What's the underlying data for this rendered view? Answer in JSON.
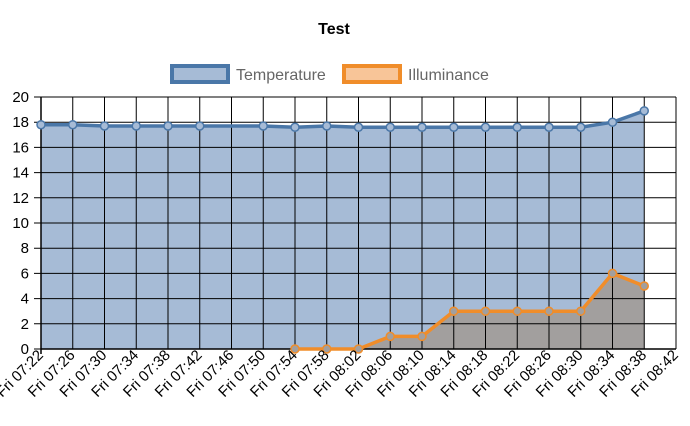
{
  "chart_data": {
    "type": "line",
    "title": "Test",
    "legend_position": "top",
    "grid": true,
    "ylim": [
      0,
      20
    ],
    "y_ticks": [
      "0",
      "2",
      "4",
      "6",
      "8",
      "10",
      "12",
      "14",
      "16",
      "18",
      "20"
    ],
    "categories": [
      "Fri 07:22",
      "Fri 07:26",
      "Fri 07:30",
      "Fri 07:34",
      "Fri 07:38",
      "Fri 07:42",
      "Fri 07:46",
      "Fri 07:50",
      "Fri 07:54",
      "Fri 07:58",
      "Fri 08:02",
      "Fri 08:06",
      "Fri 08:10",
      "Fri 08:14",
      "Fri 08:18",
      "Fri 08:22",
      "Fri 08:26",
      "Fri 08:30",
      "Fri 08:34",
      "Fri 08:38",
      "Fri 08:42"
    ],
    "series": [
      {
        "name": "Temperature",
        "color": "#4a77a8",
        "fill": "#a6bbd6",
        "points": [
          {
            "x": "Fri 07:22",
            "y": 17.8
          },
          {
            "x": "Fri 07:26",
            "y": 17.8
          },
          {
            "x": "Fri 07:30",
            "y": 17.7
          },
          {
            "x": "Fri 07:34",
            "y": 17.7
          },
          {
            "x": "Fri 07:38",
            "y": 17.7
          },
          {
            "x": "Fri 07:42",
            "y": 17.7
          },
          {
            "x": "Fri 07:50",
            "y": 17.7
          },
          {
            "x": "Fri 07:54",
            "y": 17.6
          },
          {
            "x": "Fri 07:58",
            "y": 17.7
          },
          {
            "x": "Fri 08:02",
            "y": 17.6
          },
          {
            "x": "Fri 08:06",
            "y": 17.6
          },
          {
            "x": "Fri 08:10",
            "y": 17.6
          },
          {
            "x": "Fri 08:14",
            "y": 17.6
          },
          {
            "x": "Fri 08:18",
            "y": 17.6
          },
          {
            "x": "Fri 08:22",
            "y": 17.6
          },
          {
            "x": "Fri 08:26",
            "y": 17.6
          },
          {
            "x": "Fri 08:30",
            "y": 17.6
          },
          {
            "x": "Fri 08:34",
            "y": 18.0
          },
          {
            "x": "Fri 08:38",
            "y": 18.9
          }
        ]
      },
      {
        "name": "Illuminance",
        "color": "#f08d2a",
        "fill": "#a29f9e",
        "points": [
          {
            "x": "Fri 07:54",
            "y": 0
          },
          {
            "x": "Fri 07:58",
            "y": 0
          },
          {
            "x": "Fri 08:02",
            "y": 0
          },
          {
            "x": "Fri 08:06",
            "y": 1
          },
          {
            "x": "Fri 08:10",
            "y": 1
          },
          {
            "x": "Fri 08:14",
            "y": 3
          },
          {
            "x": "Fri 08:18",
            "y": 3
          },
          {
            "x": "Fri 08:22",
            "y": 3
          },
          {
            "x": "Fri 08:26",
            "y": 3
          },
          {
            "x": "Fri 08:30",
            "y": 3
          },
          {
            "x": "Fri 08:34",
            "y": 6
          },
          {
            "x": "Fri 08:38",
            "y": 5
          }
        ]
      }
    ],
    "legend": [
      {
        "name": "Temperature",
        "color": "#4a77a8",
        "fill": "#a6bbd6"
      },
      {
        "name": "Illuminance",
        "color": "#f08d2a",
        "fill": "#f8c598"
      }
    ]
  }
}
